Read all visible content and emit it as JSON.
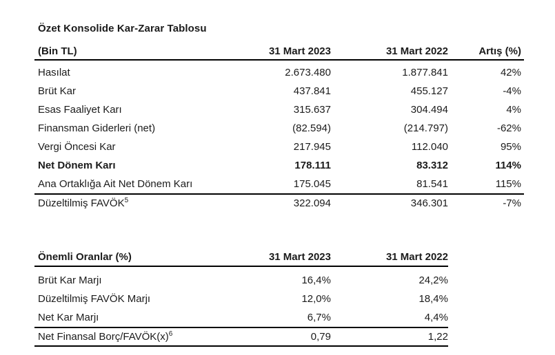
{
  "page": {
    "background": "#ffffff",
    "text_color": "#1b1b1b",
    "rule_color": "#000000"
  },
  "income_table": {
    "title": "Özet Konsolide Kar-Zarar Tablosu",
    "header": {
      "unit_label": "(Bin TL)",
      "col_2023": "31 Mart 2023",
      "col_2022": "31 Mart 2022",
      "col_change": "Artış (%)"
    },
    "rows": [
      {
        "label": "Hasılat",
        "v2023": "2.673.480",
        "v2022": "1.877.841",
        "change": "42%"
      },
      {
        "label": "Brüt Kar",
        "v2023": "437.841",
        "v2022": "455.127",
        "change": "-4%"
      },
      {
        "label": "Esas Faaliyet Karı",
        "v2023": "315.637",
        "v2022": "304.494",
        "change": "4%"
      },
      {
        "label": "Finansman Giderleri (net)",
        "v2023": "(82.594)",
        "v2022": "(214.797)",
        "change": "-62%"
      },
      {
        "label": "Vergi Öncesi Kar",
        "v2023": "217.945",
        "v2022": "112.040",
        "change": "95%"
      },
      {
        "label": "Net Dönem Karı",
        "v2023": "178.111",
        "v2022": "83.312",
        "change": "114%"
      },
      {
        "label": "Ana Ortaklığa Ait Net Dönem Karı",
        "v2023": "175.045",
        "v2022": "81.541",
        "change": "115%"
      },
      {
        "label": "Düzeltilmiş FAVÖK",
        "footnote": "5",
        "v2023": "322.094",
        "v2022": "346.301",
        "change": "-7%"
      }
    ]
  },
  "ratios_table": {
    "header": {
      "title": "Önemli Oranlar (%)",
      "col_2023": "31 Mart 2023",
      "col_2022": "31 Mart 2022"
    },
    "rows": [
      {
        "label": "Brüt Kar Marjı",
        "v2023": "16,4%",
        "v2022": "24,2%"
      },
      {
        "label": "Düzeltilmiş FAVÖK Marjı",
        "v2023": "12,0%",
        "v2022": "18,4%"
      },
      {
        "label": "Net Kar Marjı",
        "v2023": "6,7%",
        "v2022": "4,4%"
      },
      {
        "label": "Net Finansal Borç/FAVÖK(x)",
        "footnote": "6",
        "v2023": "0,79",
        "v2022": "1,22"
      }
    ]
  }
}
